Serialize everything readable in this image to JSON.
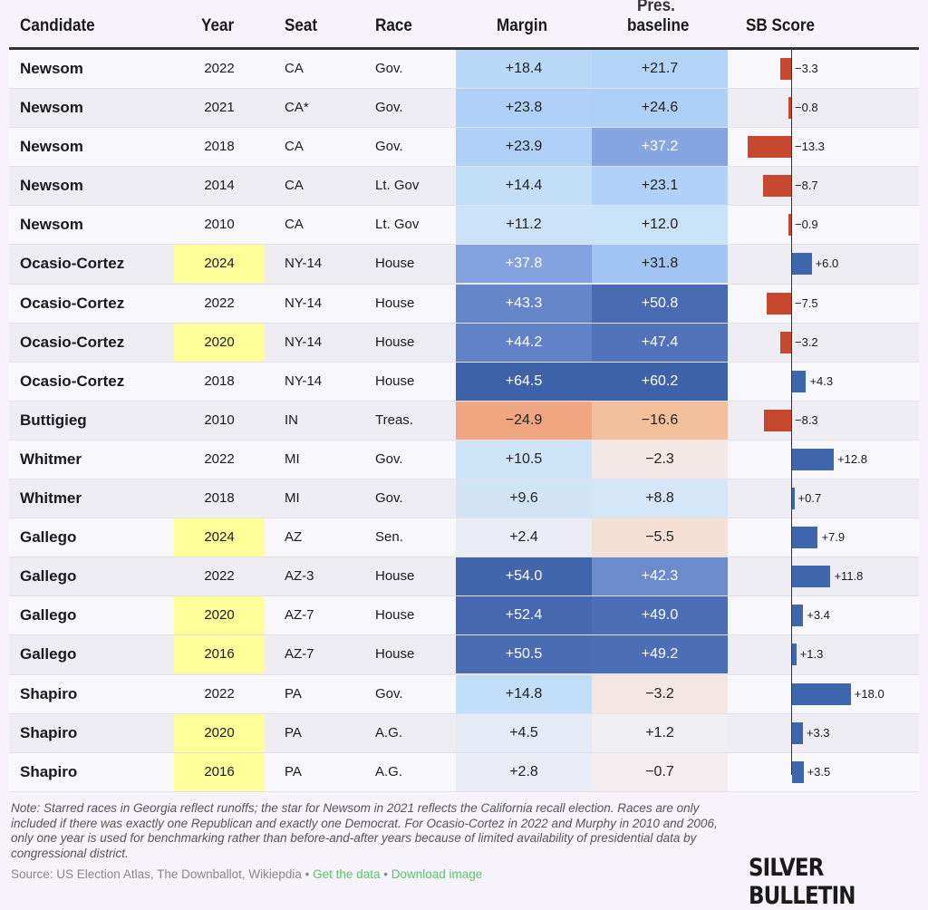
{
  "chart_data": {
    "type": "table",
    "columns": {
      "candidate": "Candidate",
      "year": "Year",
      "seat": "Seat",
      "race": "Race",
      "margin": "Margin",
      "baseline_top": "Pres.",
      "baseline": "baseline",
      "score": "SB Score"
    },
    "rows": [
      {
        "candidate": "Newsom",
        "year": "2022",
        "seat": "CA",
        "race": "Gov.",
        "margin": "+18.4",
        "baseline": "+21.7",
        "score": "−3.3",
        "score_value": -3.3,
        "hl": false
      },
      {
        "candidate": "Newsom",
        "year": "2021",
        "seat": "CA*",
        "race": "Gov.",
        "margin": "+23.8",
        "baseline": "+24.6",
        "score": "−0.8",
        "score_value": -0.8,
        "hl": false
      },
      {
        "candidate": "Newsom",
        "year": "2018",
        "seat": "CA",
        "race": "Gov.",
        "margin": "+23.9",
        "baseline": "+37.2",
        "score": "−13.3",
        "score_value": -13.3,
        "hl": false
      },
      {
        "candidate": "Newsom",
        "year": "2014",
        "seat": "CA",
        "race": "Lt. Gov",
        "margin": "+14.4",
        "baseline": "+23.1",
        "score": "−8.7",
        "score_value": -8.7,
        "hl": false
      },
      {
        "candidate": "Newsom",
        "year": "2010",
        "seat": "CA",
        "race": "Lt. Gov",
        "margin": "+11.2",
        "baseline": "+12.0",
        "score": "−0.9",
        "score_value": -0.9,
        "hl": false
      },
      {
        "candidate": "Ocasio-Cortez",
        "year": "2024",
        "seat": "NY-14",
        "race": "House",
        "margin": "+37.8",
        "baseline": "+31.8",
        "score": "+6.0",
        "score_value": 6.0,
        "hl": true
      },
      {
        "candidate": "Ocasio-Cortez",
        "year": "2022",
        "seat": "NY-14",
        "race": "House",
        "margin": "+43.3",
        "baseline": "+50.8",
        "score": "−7.5",
        "score_value": -7.5,
        "hl": false
      },
      {
        "candidate": "Ocasio-Cortez",
        "year": "2020",
        "seat": "NY-14",
        "race": "House",
        "margin": "+44.2",
        "baseline": "+47.4",
        "score": "−3.2",
        "score_value": -3.2,
        "hl": true
      },
      {
        "candidate": "Ocasio-Cortez",
        "year": "2018",
        "seat": "NY-14",
        "race": "House",
        "margin": "+64.5",
        "baseline": "+60.2",
        "score": "+4.3",
        "score_value": 4.3,
        "hl": false
      },
      {
        "candidate": "Buttigieg",
        "year": "2010",
        "seat": "IN",
        "race": "Treas.",
        "margin": "−24.9",
        "baseline": "−16.6",
        "score": "−8.3",
        "score_value": -8.3,
        "hl": false
      },
      {
        "candidate": "Whitmer",
        "year": "2022",
        "seat": "MI",
        "race": "Gov.",
        "margin": "+10.5",
        "baseline": "−2.3",
        "score": "+12.8",
        "score_value": 12.8,
        "hl": false
      },
      {
        "candidate": "Whitmer",
        "year": "2018",
        "seat": "MI",
        "race": "Gov.",
        "margin": "+9.6",
        "baseline": "+8.8",
        "score": "+0.7",
        "score_value": 0.7,
        "hl": false
      },
      {
        "candidate": "Gallego",
        "year": "2024",
        "seat": "AZ",
        "race": "Sen.",
        "margin": "+2.4",
        "baseline": "−5.5",
        "score": "+7.9",
        "score_value": 7.9,
        "hl": true
      },
      {
        "candidate": "Gallego",
        "year": "2022",
        "seat": "AZ-3",
        "race": "House",
        "margin": "+54.0",
        "baseline": "+42.3",
        "score": "+11.8",
        "score_value": 11.8,
        "hl": false
      },
      {
        "candidate": "Gallego",
        "year": "2020",
        "seat": "AZ-7",
        "race": "House",
        "margin": "+52.4",
        "baseline": "+49.0",
        "score": "+3.4",
        "score_value": 3.4,
        "hl": true
      },
      {
        "candidate": "Gallego",
        "year": "2016",
        "seat": "AZ-7",
        "race": "House",
        "margin": "+50.5",
        "baseline": "+49.2",
        "score": "+1.3",
        "score_value": 1.3,
        "hl": true
      },
      {
        "candidate": "Shapiro",
        "year": "2022",
        "seat": "PA",
        "race": "Gov.",
        "margin": "+14.8",
        "baseline": "−3.2",
        "score": "+18.0",
        "score_value": 18.0,
        "hl": false
      },
      {
        "candidate": "Shapiro",
        "year": "2020",
        "seat": "PA",
        "race": "A.G.",
        "margin": "+4.5",
        "baseline": "+1.2",
        "score": "+3.3",
        "score_value": 3.3,
        "hl": true
      },
      {
        "candidate": "Shapiro",
        "year": "2016",
        "seat": "PA",
        "race": "A.G.",
        "margin": "+2.8",
        "baseline": "−0.7",
        "score": "+3.5",
        "score_value": 3.5,
        "hl": true
      }
    ]
  },
  "colors": {
    "positive_bar": "#3d66ad",
    "negative_bar": "#c8472f",
    "highlight": "#ffff99"
  },
  "footer": {
    "note": "Note: Starred races in Georgia reflect runoffs; the star for Newsom in 2021 reflects the California recall election. Races are only included if there was exactly one Republican and exactly one Democrat. For Ocasio-Cortez in 2022 and Murphy in 2010 and 2006, only one year is used for benchmarking rather than before-and-after years because of limited availability of presidential data by congressional district.",
    "source": "Source: US Election Atlas, The Downballot, Wikiepdia",
    "sep": " • ",
    "get_data": "Get the data",
    "download": "Download image",
    "logo": "SILVER BULLETIN"
  }
}
